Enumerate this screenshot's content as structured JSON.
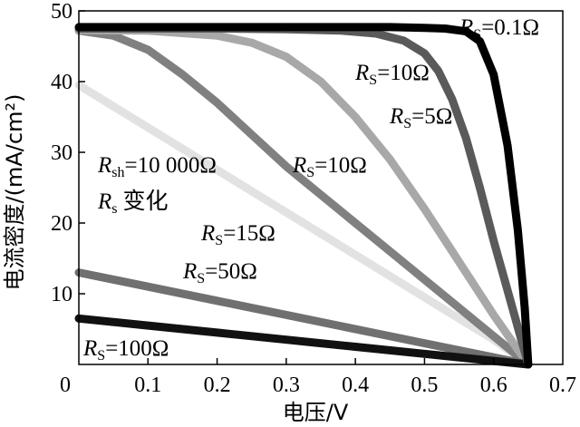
{
  "chart_data": {
    "type": "line",
    "xlabel": "电压/V",
    "ylabel": "电流密度/(mA/cm²)",
    "xlim": [
      0,
      0.7
    ],
    "ylim": [
      0,
      50
    ],
    "x_ticks": [
      "0",
      "0.1",
      "0.2",
      "0.3",
      "0.4",
      "0.5",
      "0.6",
      "0.7"
    ],
    "y_ticks": [
      "10",
      "20",
      "30",
      "40",
      "50"
    ],
    "grid": false,
    "legend": "none",
    "annotations": {
      "rsh_text": "=10 000Ω",
      "rsh_sym": "R",
      "rsh_sub": "sh",
      "rs_change_sym": "R",
      "rs_change_sub": "s",
      "rs_change_text": "变化"
    },
    "series": [
      {
        "name": "Rs=0.1Ω",
        "sym": "R",
        "sub": "S",
        "eq": "=0.1Ω",
        "color": "#000000",
        "x": [
          0,
          0.1,
          0.2,
          0.3,
          0.4,
          0.45,
          0.5,
          0.53,
          0.56,
          0.58,
          0.6,
          0.62,
          0.635,
          0.645,
          0.65
        ],
        "y": [
          47.7,
          47.7,
          47.7,
          47.7,
          47.7,
          47.7,
          47.6,
          47.5,
          47.1,
          45.7,
          41,
          31,
          19,
          8,
          0
        ]
      },
      {
        "name": "Rs=5Ω",
        "sym": "R",
        "sub": "S",
        "eq": "=5Ω",
        "color": "#5a5a5a",
        "x": [
          0,
          0.1,
          0.2,
          0.3,
          0.38,
          0.43,
          0.47,
          0.5,
          0.52,
          0.54,
          0.56,
          0.58,
          0.6,
          0.62,
          0.64,
          0.65
        ],
        "y": [
          47.5,
          47.5,
          47.5,
          47.4,
          47.2,
          46.8,
          45.8,
          44,
          41.5,
          37.5,
          32,
          25,
          17.5,
          10.5,
          3.5,
          0
        ]
      },
      {
        "name": "Rs=10Ω",
        "sym": "R",
        "sub": "S",
        "eq": "=10Ω",
        "color": "#a8a8a8",
        "x": [
          0,
          0.1,
          0.2,
          0.25,
          0.3,
          0.35,
          0.4,
          0.45,
          0.5,
          0.55,
          0.6,
          0.65
        ],
        "y": [
          47.3,
          47.2,
          46.5,
          45.5,
          43.5,
          40,
          35,
          29,
          22,
          14.5,
          7,
          0
        ]
      },
      {
        "name": "Rs=15Ω",
        "sym": "R",
        "sub": "S",
        "eq": "=15Ω",
        "color": "#808080",
        "x": [
          0,
          0.05,
          0.1,
          0.15,
          0.2,
          0.25,
          0.3,
          0.35,
          0.4,
          0.45,
          0.5,
          0.55,
          0.6,
          0.65
        ],
        "y": [
          47.2,
          46.5,
          44.5,
          41,
          37,
          32.5,
          28,
          24,
          20,
          16,
          12,
          8,
          4,
          0
        ]
      },
      {
        "name": "Rs=50Ω",
        "sym": "R",
        "sub": "S",
        "eq": "=50Ω",
        "color": "#e2e2e2",
        "x": [
          0,
          0.1,
          0.2,
          0.3,
          0.4,
          0.5,
          0.6,
          0.65
        ],
        "y": [
          39.5,
          33.5,
          27.5,
          21.5,
          15.5,
          9.5,
          3.5,
          0
        ]
      },
      {
        "name": "Rs=100Ω",
        "sym": "R",
        "sub": "S",
        "eq": "=100Ω",
        "color": "#707070",
        "x": [
          0,
          0.1,
          0.2,
          0.3,
          0.4,
          0.5,
          0.6,
          0.65
        ],
        "y": [
          13,
          11,
          9,
          7,
          5,
          3,
          1,
          0
        ]
      },
      {
        "name": "Rs=100Ω (lower)",
        "sym": "R",
        "sub": "S",
        "eq": "=100Ω",
        "color": "#111111",
        "x": [
          0,
          0.1,
          0.2,
          0.3,
          0.4,
          0.5,
          0.6,
          0.65
        ],
        "y": [
          6.5,
          5.5,
          4.5,
          3.5,
          2.5,
          1.5,
          0.5,
          0
        ]
      }
    ]
  },
  "labels": {
    "l01": {
      "sym": "R",
      "sub": "S",
      "eq": "=0.1Ω"
    },
    "l10a": {
      "sym": "R",
      "sub": "S",
      "eq": "=10Ω"
    },
    "l5": {
      "sym": "R",
      "sub": "S",
      "eq": "=5Ω"
    },
    "l10b": {
      "sym": "R",
      "sub": "S",
      "eq": "=10Ω"
    },
    "l15": {
      "sym": "R",
      "sub": "S",
      "eq": "=15Ω"
    },
    "l50": {
      "sym": "R",
      "sub": "S",
      "eq": "=50Ω"
    },
    "l100": {
      "sym": "R",
      "sub": "S",
      "eq": "=100Ω"
    }
  }
}
